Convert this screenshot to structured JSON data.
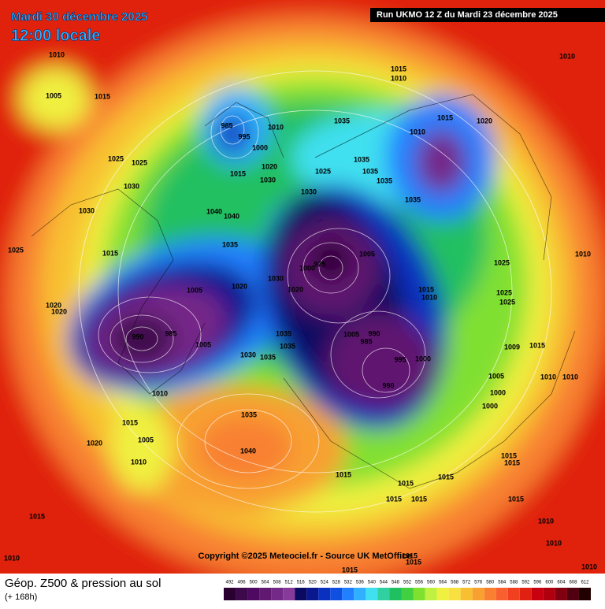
{
  "header": {
    "date": "Mardi 30 décembre 2025",
    "time": "12:00 locale",
    "run": "Run UKMO 12 Z du Mardi 23 décembre 2025"
  },
  "copyright": "Copyright ©2025 Meteociel.fr - Source UK MetOffice",
  "footer": {
    "title": "Géop. Z500 & pression au sol",
    "lead": "(+ 168h)"
  },
  "scale": {
    "values": [
      492,
      496,
      500,
      504,
      508,
      512,
      516,
      520,
      524,
      528,
      532,
      536,
      540,
      544,
      548,
      552,
      556,
      560,
      564,
      568,
      572,
      576,
      580,
      584,
      588,
      592,
      596,
      600,
      604,
      608,
      612
    ],
    "colors": [
      "#2a0030",
      "#3c0a4a",
      "#4e0a60",
      "#601870",
      "#742888",
      "#883a9a",
      "#0a0a60",
      "#0a1890",
      "#0a30c0",
      "#1050e0",
      "#2080ff",
      "#30b0ff",
      "#40e0f0",
      "#30d0a0",
      "#20c060",
      "#40d040",
      "#80e030",
      "#c0f040",
      "#f0f040",
      "#f8e040",
      "#f8c030",
      "#f8a030",
      "#f88030",
      "#f86030",
      "#f04020",
      "#e02010",
      "#c80010",
      "#b00010",
      "#800010",
      "#500010",
      "#200000"
    ]
  },
  "pressure_labels": [
    1010,
    1005,
    1015,
    1025,
    1025,
    1030,
    1030,
    1025,
    1015,
    1020,
    1020,
    1005,
    1020,
    985,
    990,
    1005,
    1010,
    1030,
    1035,
    1035,
    1035,
    1035,
    1040,
    1040,
    1015,
    1000,
    1020,
    1030,
    1030,
    985,
    995,
    1010,
    1035,
    1035,
    1025,
    1035,
    1035,
    1015,
    1010,
    1010,
    1015,
    1020,
    1035,
    1005,
    1000,
    975,
    1030,
    1020,
    1015,
    1010,
    1005,
    990,
    985,
    995,
    1000,
    990,
    1025,
    1025,
    1025,
    1010,
    1010,
    1009,
    1015,
    1005,
    1000,
    1000,
    1010,
    1010,
    1015,
    1005,
    1020,
    1010,
    1035,
    1040,
    1015,
    1015,
    1015,
    1015,
    1015,
    1015,
    1015,
    1015,
    1015,
    1010,
    1010,
    1010,
    1010,
    1015,
    1015,
    1015
  ]
}
